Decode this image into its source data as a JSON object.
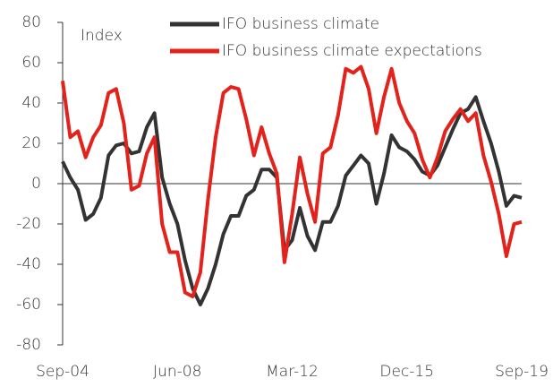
{
  "chart_data": {
    "type": "line",
    "y_label": "Index",
    "categories": [
      "Sep-04",
      null,
      null,
      null,
      null,
      null,
      null,
      null,
      null,
      null,
      null,
      null,
      null,
      null,
      null,
      "Jun-08",
      null,
      null,
      null,
      null,
      null,
      null,
      null,
      null,
      null,
      null,
      null,
      null,
      null,
      null,
      "Mar-12",
      null,
      null,
      null,
      null,
      null,
      null,
      null,
      null,
      null,
      null,
      null,
      null,
      null,
      null,
      "Dec-15",
      null,
      null,
      null,
      null,
      null,
      null,
      null,
      null,
      null,
      null,
      null,
      null,
      null,
      null,
      "Sep-19"
    ],
    "series": [
      {
        "name": "IFO business climate",
        "color": "#333333",
        "values": [
          11,
          3,
          -3,
          -18,
          -15,
          -7,
          14,
          19,
          20,
          15,
          16,
          28,
          35,
          3,
          -10,
          -20,
          -38,
          -52,
          -60,
          -52,
          -40,
          -25,
          -16,
          -16,
          -6,
          -3,
          7,
          7,
          3,
          -33,
          -28,
          -12,
          -26,
          -33,
          -19,
          -19,
          -11,
          4,
          9,
          14,
          10,
          -10,
          5,
          24,
          18,
          16,
          12,
          6,
          4,
          9,
          18,
          27,
          35,
          37,
          43,
          31,
          20,
          6,
          -11,
          -6,
          -7
        ]
      },
      {
        "name": "IFO business climate expectations",
        "color": "#e3231b",
        "values": [
          51,
          23,
          26,
          13,
          23,
          29,
          45,
          47,
          30,
          -3,
          -1,
          15,
          23,
          -20,
          -34,
          -34,
          -54,
          -56,
          -44,
          -8,
          23,
          45,
          48,
          47,
          32,
          14,
          28,
          15,
          5,
          -39,
          -15,
          13,
          -5,
          -19,
          15,
          18,
          34,
          57,
          55,
          58,
          47,
          25,
          43,
          57,
          40,
          31,
          25,
          12,
          3,
          13,
          26,
          32,
          37,
          31,
          35,
          14,
          1,
          -15,
          -36,
          -20,
          -19
        ]
      }
    ],
    "ylim": [
      -80,
      80
    ],
    "yticks": [
      -80,
      -60,
      -40,
      -20,
      0,
      20,
      40,
      60,
      80
    ],
    "grid": false
  }
}
